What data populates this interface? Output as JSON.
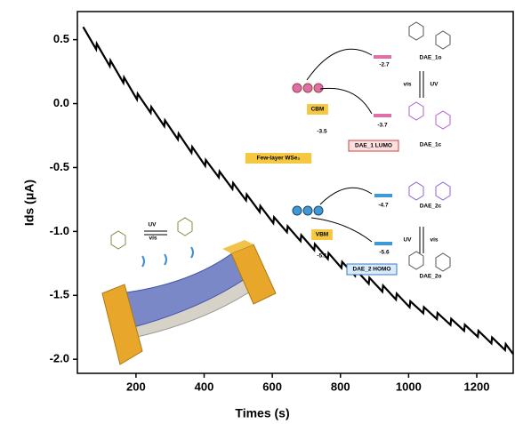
{
  "chart_data": {
    "type": "line",
    "color": "#000000",
    "x_label": "Times (s)",
    "y_label": "Ids (μA)",
    "xlim": [
      28,
      1307
    ],
    "ylim": [
      -2.11,
      0.72
    ],
    "xticks": [
      200,
      400,
      600,
      800,
      1000,
      1200
    ],
    "yticks": [
      0.5,
      {
        "value": 0,
        "label": "0.0"
      },
      -0.5,
      {
        "value": -1,
        "label": "-1.0"
      },
      -1.5,
      {
        "value": -2,
        "label": "-2.0"
      }
    ],
    "x": [
      45,
      83,
      85,
      123,
      125,
      163,
      165,
      203,
      205,
      243,
      245,
      283,
      285,
      323,
      325,
      363,
      365,
      403,
      405,
      443,
      445,
      483,
      485,
      523,
      525,
      563,
      565,
      603,
      605,
      643,
      645,
      683,
      685,
      723,
      725,
      763,
      765,
      803,
      805,
      843,
      845,
      883,
      885,
      923,
      925,
      963,
      965,
      1003,
      1005,
      1043,
      1045,
      1083,
      1085,
      1123,
      1125,
      1163,
      1165,
      1203,
      1205,
      1243,
      1245,
      1283,
      1285,
      1307
    ],
    "values": [
      0.6,
      0.425,
      0.468,
      0.293,
      0.337,
      0.162,
      0.205,
      0.032,
      0.077,
      -0.072,
      -0.027,
      -0.176,
      -0.131,
      -0.28,
      -0.235,
      -0.384,
      -0.339,
      -0.487,
      -0.441,
      -0.577,
      -0.531,
      -0.667,
      -0.621,
      -0.757,
      -0.711,
      -0.847,
      -0.801,
      -0.935,
      -0.889,
      -1.005,
      -0.959,
      -1.075,
      -1.029,
      -1.145,
      -1.099,
      -1.215,
      -1.169,
      -1.285,
      -1.238,
      -1.347,
      -1.3,
      -1.409,
      -1.362,
      -1.471,
      -1.424,
      -1.533,
      -1.486,
      -1.593,
      -1.546,
      -1.639,
      -1.592,
      -1.685,
      -1.638,
      -1.731,
      -1.684,
      -1.777,
      -1.73,
      -1.824,
      -1.777,
      -1.876,
      -1.829,
      -1.928,
      -1.881,
      -1.96
    ],
    "annotations": [
      "CBM",
      "-3.5",
      "-2.7",
      "-3.7",
      "DAE_1 LUMO",
      "Few-layer WSe₂",
      "VBM",
      "-5.1",
      "-4.7",
      "-5.6",
      "DAE_2 HOMO",
      "DAE_1o",
      "vis",
      "UV",
      "DAE_1c",
      "DAE_2c",
      "UV",
      "vis",
      "DAE_2o",
      "UV",
      "vis"
    ]
  }
}
